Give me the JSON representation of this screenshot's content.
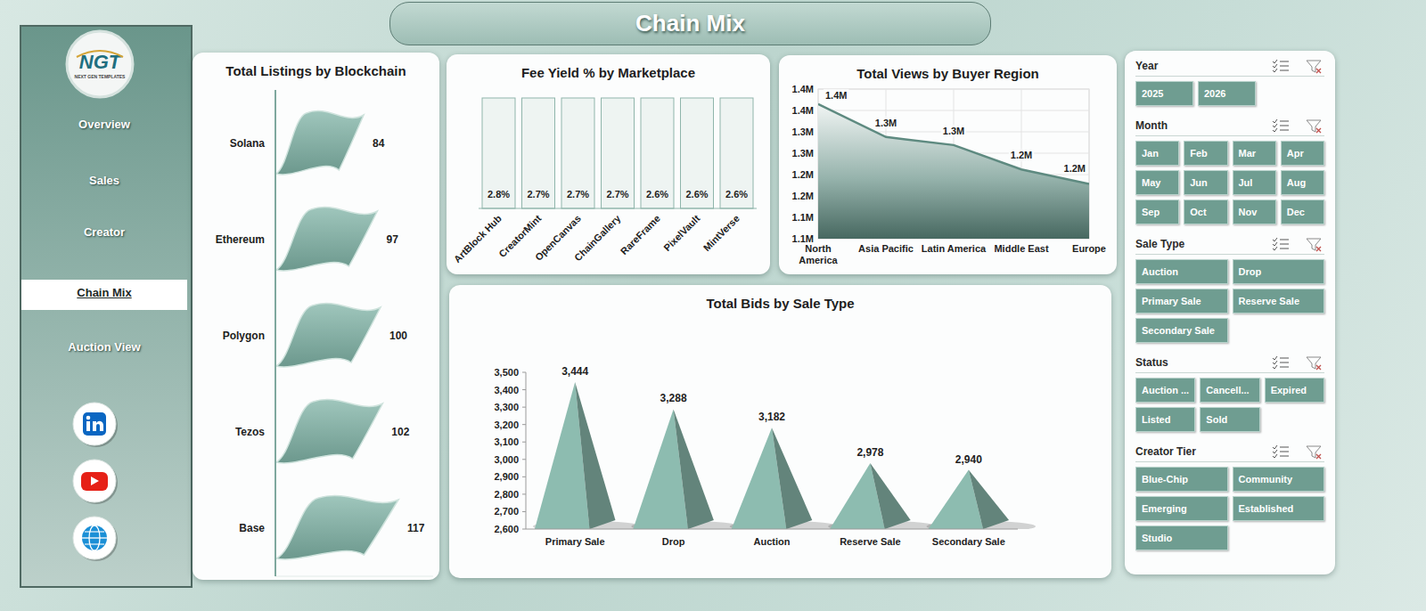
{
  "header": {
    "title": "Chain Mix"
  },
  "logo": {
    "text": "NGT",
    "subtitle": "NEXT GEN TEMPLATES"
  },
  "nav": [
    "Overview",
    "Sales",
    "Creator",
    "Chain Mix",
    "Auction View"
  ],
  "slicers": [
    {
      "title": "Year",
      "items": [
        "2025",
        "2026"
      ]
    },
    {
      "title": "Month",
      "items": [
        "Jan",
        "Feb",
        "Mar",
        "Apr",
        "May",
        "Jun",
        "Jul",
        "Aug",
        "Sep",
        "Oct",
        "Nov",
        "Dec"
      ]
    },
    {
      "title": "Sale Type",
      "items": [
        "Auction",
        "Drop",
        "Primary Sale",
        "Reserve Sale",
        "Secondary Sale"
      ]
    },
    {
      "title": "Status",
      "items": [
        "Auction ...",
        "Cancell...",
        "Expired",
        "Listed",
        "Sold"
      ]
    },
    {
      "title": "Creator Tier",
      "items": [
        "Blue-Chip",
        "Community",
        "Emerging",
        "Established",
        "Studio"
      ]
    }
  ],
  "chart_data": [
    {
      "type": "bar",
      "orientation": "horizontal",
      "title": "Total Listings by Blockchain",
      "categories": [
        "Solana",
        "Ethereum",
        "Polygon",
        "Tezos",
        "Base"
      ],
      "values": [
        84,
        97,
        100,
        102,
        117
      ],
      "color": "#7fb3a6",
      "xlim": [
        0,
        150
      ],
      "tick_labels": "y",
      "data_labels": true
    },
    {
      "type": "bar",
      "title": "Fee Yield % by Marketplace",
      "categories": [
        "ArtBlock Hub",
        "CreatorMint",
        "OpenCanvas",
        "ChainGallery",
        "RareFrame",
        "PixelVault",
        "MintVerse"
      ],
      "values": [
        2.8,
        2.7,
        2.7,
        2.7,
        2.6,
        2.6,
        2.6
      ],
      "value_labels": [
        "2.8%",
        "2.7%",
        "2.7%",
        "2.7%",
        "2.6%",
        "2.6%",
        "2.6%"
      ],
      "color": "#6f9f93",
      "ylim": [
        0,
        100
      ],
      "tick_labels": "x",
      "data_labels": true
    },
    {
      "type": "area",
      "title": "Total Views by Buyer Region",
      "categories": [
        "North America",
        "Asia Pacific",
        "Latin America",
        "Middle East",
        "Europe"
      ],
      "values": [
        1385000,
        1308000,
        1289000,
        1232000,
        1198000
      ],
      "value_labels": [
        "1.4M",
        "1.3M",
        "1.3M",
        "1.2M",
        "1.2M"
      ],
      "color": "#5e8a80",
      "ylim": [
        1070000,
        1420000
      ],
      "yticks": [
        {
          "value": 1070000,
          "label": "1.1M"
        },
        {
          "value": 1120000,
          "label": "1.1M"
        },
        {
          "value": 1170000,
          "label": "1.2M"
        },
        {
          "value": 1220000,
          "label": "1.2M"
        },
        {
          "value": 1270000,
          "label": "1.3M"
        },
        {
          "value": 1320000,
          "label": "1.3M"
        },
        {
          "value": 1370000,
          "label": "1.4M"
        },
        {
          "value": 1420000,
          "label": "1.4M"
        }
      ],
      "grid": true,
      "data_labels": true
    },
    {
      "type": "bar",
      "title": "Total Bids by Sale Type",
      "categories": [
        "Primary Sale",
        "Drop",
        "Auction",
        "Reserve Sale",
        "Secondary Sale"
      ],
      "values": [
        3444,
        3288,
        3182,
        2978,
        2940
      ],
      "value_labels": [
        "3,444",
        "3,288",
        "3,182",
        "2,978",
        "2,940"
      ],
      "color": "#8dbcb0",
      "marker": "pyramid",
      "ylim": [
        2600,
        3500
      ],
      "yticks": [
        {
          "value": 2600,
          "label": "2,600"
        },
        {
          "value": 2700,
          "label": "2,700"
        },
        {
          "value": 2800,
          "label": "2,800"
        },
        {
          "value": 2900,
          "label": "2,900"
        },
        {
          "value": 3000,
          "label": "3,000"
        },
        {
          "value": 3100,
          "label": "3,100"
        },
        {
          "value": 3200,
          "label": "3,200"
        },
        {
          "value": 3300,
          "label": "3,300"
        },
        {
          "value": 3400,
          "label": "3,400"
        },
        {
          "value": 3500,
          "label": "3,500"
        }
      ],
      "grid": false,
      "data_labels": true
    }
  ]
}
